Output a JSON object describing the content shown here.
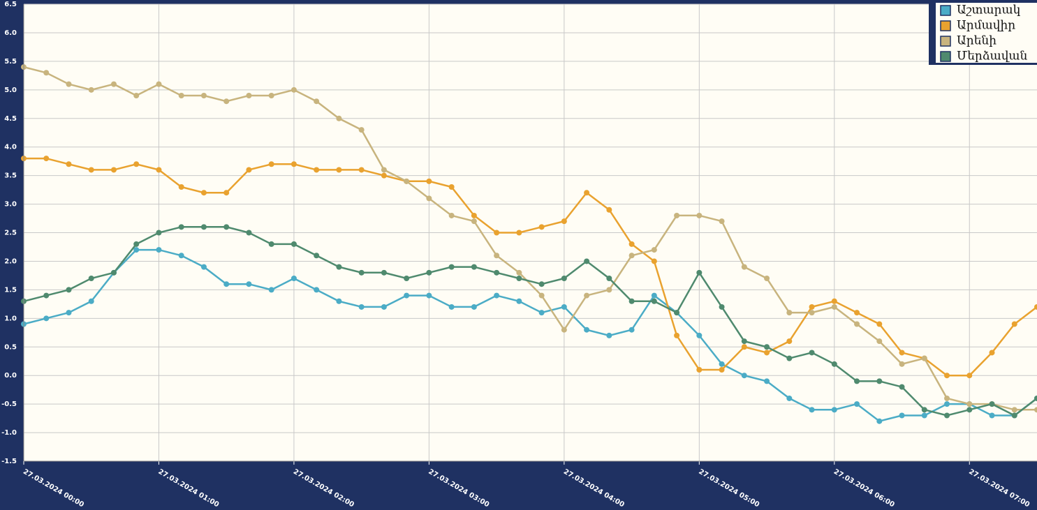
{
  "chart_data": {
    "type": "line",
    "categories": [
      "27.03.2024 00:00",
      null,
      null,
      null,
      null,
      null,
      "27.03.2024 01:00",
      null,
      null,
      null,
      null,
      null,
      "27.03.2024 02:00",
      null,
      null,
      null,
      null,
      null,
      "27.03.2024 03:00",
      null,
      null,
      null,
      null,
      null,
      "27.03.2024 04:00",
      null,
      null,
      null,
      null,
      null,
      "27.03.2024 05:00",
      null,
      null,
      null,
      null,
      null,
      "27.03.2024 06:00",
      null,
      null,
      null,
      null,
      null,
      "27.03.2024 07:00",
      null,
      null,
      null
    ],
    "series": [
      {
        "name": "Աշտարակ",
        "color": "#4bacc6",
        "values": [
          0.9,
          1.0,
          1.1,
          1.3,
          1.8,
          2.2,
          2.2,
          2.1,
          1.9,
          1.6,
          1.6,
          1.5,
          1.7,
          1.5,
          1.3,
          1.2,
          1.2,
          1.4,
          1.4,
          1.2,
          1.2,
          1.4,
          1.3,
          1.1,
          1.2,
          0.8,
          0.7,
          0.8,
          1.4,
          1.1,
          0.7,
          0.2,
          0.0,
          -0.1,
          -0.4,
          -0.6,
          -0.6,
          -0.5,
          -0.8,
          -0.7,
          -0.7,
          -0.5,
          -0.5,
          -0.7,
          -0.7,
          -0.4
        ]
      },
      {
        "name": "Արմավիր",
        "color": "#e9a22f",
        "values": [
          3.8,
          3.8,
          3.7,
          3.6,
          3.6,
          3.7,
          3.6,
          3.3,
          3.2,
          3.2,
          3.6,
          3.7,
          3.7,
          3.6,
          3.6,
          3.6,
          3.5,
          3.4,
          3.4,
          3.3,
          2.8,
          2.5,
          2.5,
          2.6,
          2.7,
          3.2,
          2.9,
          2.3,
          2.0,
          0.7,
          0.1,
          0.1,
          0.5,
          0.4,
          0.6,
          1.2,
          1.3,
          1.1,
          0.9,
          0.4,
          0.3,
          0.0,
          0.0,
          0.4,
          0.9,
          1.2
        ]
      },
      {
        "name": "Արենի",
        "color": "#c8b47e",
        "values": [
          5.4,
          5.3,
          5.1,
          5.0,
          5.1,
          4.9,
          5.1,
          4.9,
          4.9,
          4.8,
          4.9,
          4.9,
          5.0,
          4.8,
          4.5,
          4.3,
          3.6,
          3.4,
          3.1,
          2.8,
          2.7,
          2.1,
          1.8,
          1.4,
          0.8,
          1.4,
          1.5,
          2.1,
          2.2,
          2.8,
          2.8,
          2.7,
          1.9,
          1.7,
          1.1,
          1.1,
          1.2,
          0.9,
          0.6,
          0.2,
          0.3,
          -0.4,
          -0.5,
          -0.5,
          -0.6,
          -0.6
        ]
      },
      {
        "name": "Մերձավան",
        "color": "#4f8a6e",
        "values": [
          1.3,
          1.4,
          1.5,
          1.7,
          1.8,
          2.3,
          2.5,
          2.6,
          2.6,
          2.6,
          2.5,
          2.3,
          2.3,
          2.1,
          1.9,
          1.8,
          1.8,
          1.7,
          1.8,
          1.9,
          1.9,
          1.8,
          1.7,
          1.6,
          1.7,
          2.0,
          1.7,
          1.3,
          1.3,
          1.1,
          1.8,
          1.2,
          0.6,
          0.5,
          0.3,
          0.4,
          0.2,
          -0.1,
          -0.1,
          -0.2,
          -0.6,
          -0.7,
          -0.6,
          -0.5,
          -0.7,
          -0.4
        ]
      }
    ],
    "ylim": [
      -1.5,
      6.5
    ],
    "yticks": [
      -1.5,
      {
        "value": -1,
        "label": "-1.0"
      },
      -0.5,
      {
        "value": 0,
        "label": "0.0"
      },
      0.5,
      {
        "value": 1,
        "label": "1.0"
      },
      1.5,
      {
        "value": 2,
        "label": "2.0"
      },
      2.5,
      {
        "value": 3,
        "label": "3.0"
      },
      3.5,
      {
        "value": 4,
        "label": "4.0"
      },
      4.5,
      {
        "value": 5,
        "label": "5.0"
      },
      5.5,
      {
        "value": 6,
        "label": "6.0"
      },
      6.5
    ],
    "grid": true
  }
}
